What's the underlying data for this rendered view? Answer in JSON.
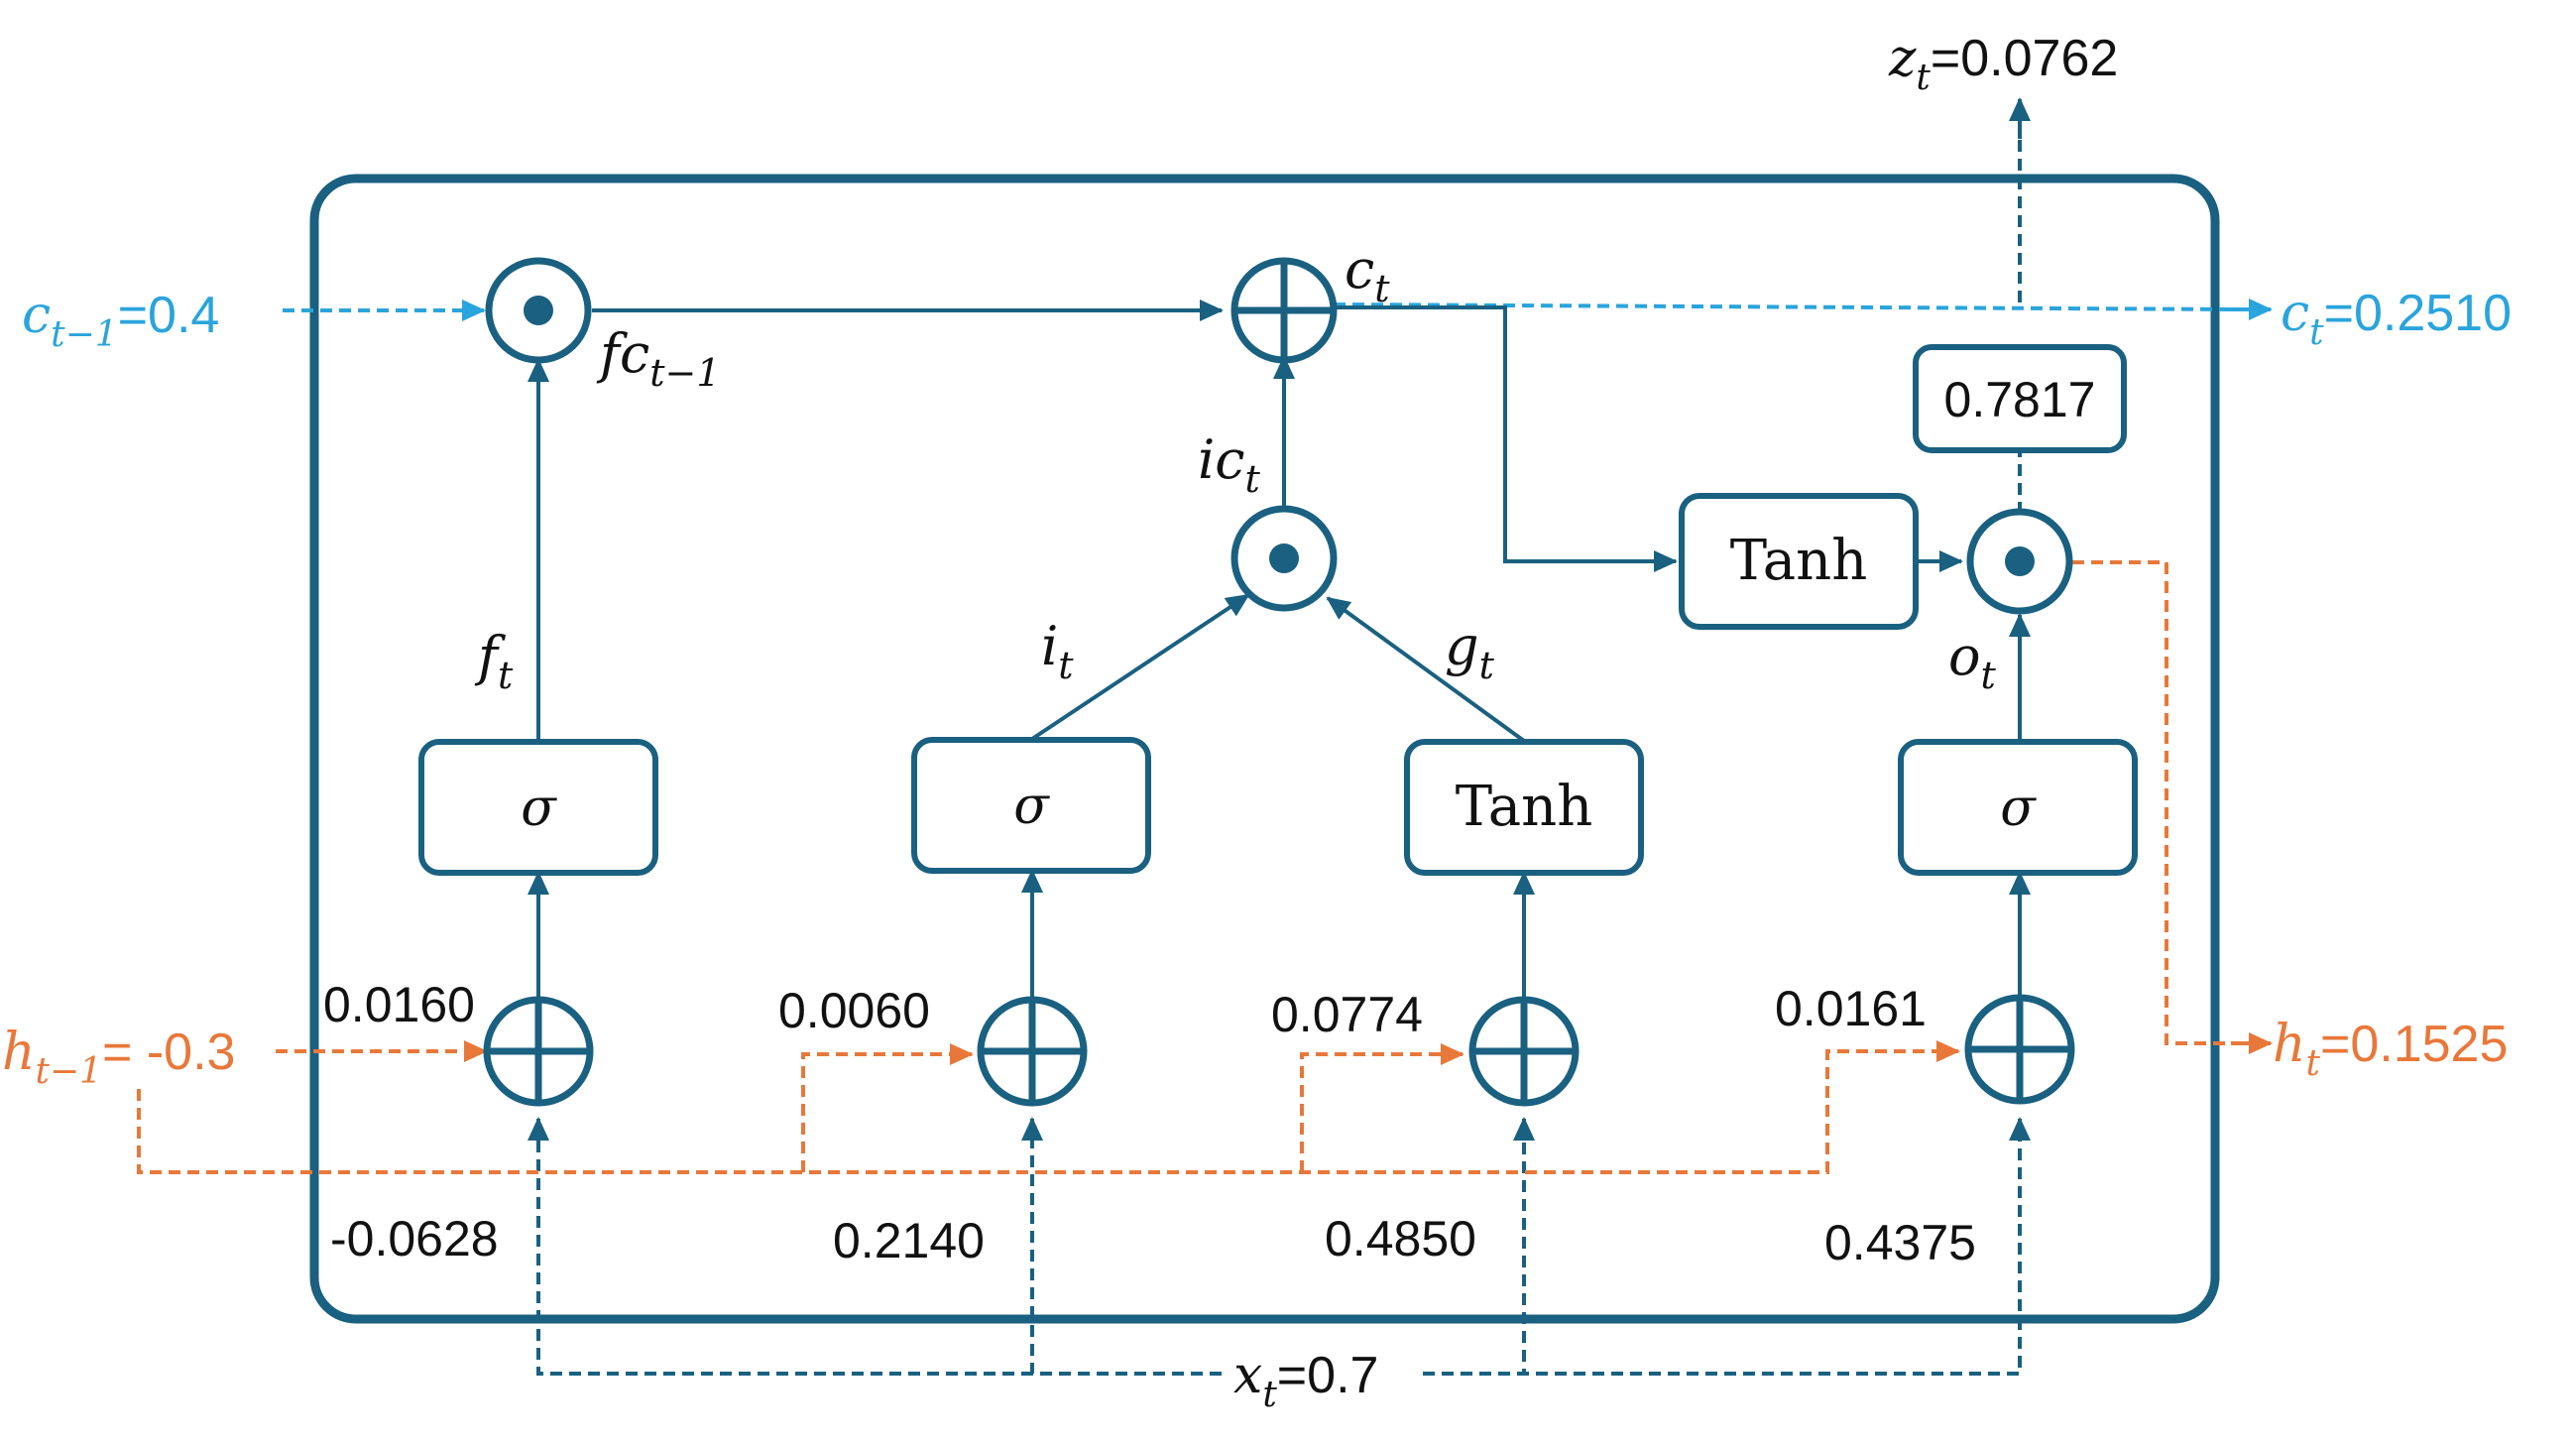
{
  "colors": {
    "main": "#1a6080",
    "cell_state": "#2aa4dc",
    "hidden_state": "#e8783a",
    "text": "#111111"
  },
  "inputs": {
    "c_prev": {
      "sym": "c",
      "sub": "t−1",
      "value": "=0.4"
    },
    "h_prev": {
      "sym": "h",
      "sub": "t−1",
      "value": "= -0.3"
    },
    "x": {
      "sym": "x",
      "sub": "t",
      "value": "=0.7"
    }
  },
  "outputs": {
    "c": {
      "sym": "c",
      "sub": "t",
      "value": "=0.2510"
    },
    "h": {
      "sym": "h",
      "sub": "t",
      "value": "=0.1525"
    },
    "z": {
      "sym": "z",
      "sub": "t",
      "value": "=0.0762"
    }
  },
  "gates": {
    "forget": {
      "activation": "σ",
      "h_weight": "0.0160",
      "x_weight": "-0.0628",
      "label_sym": "f",
      "label_sub": "t"
    },
    "input": {
      "activation": "σ",
      "h_weight": "0.0060",
      "x_weight": "0.2140",
      "label_sym": "i",
      "label_sub": "t"
    },
    "candidate": {
      "activation": "Tanh",
      "h_weight": "0.0774",
      "x_weight": "0.4850",
      "label_sym": "g",
      "label_sub": "t"
    },
    "output": {
      "activation": "σ",
      "h_weight": "0.0161",
      "x_weight": "0.4375",
      "label_sym": "o",
      "label_sub": "t"
    }
  },
  "cell": {
    "fc_label": {
      "sym": "fc",
      "sub": "t−1"
    },
    "ic_label": {
      "sym": "ic",
      "sub": "t"
    },
    "c_label": {
      "sym": "c",
      "sub": "t"
    },
    "tanh_label": "Tanh",
    "output_box": "0.7817"
  }
}
